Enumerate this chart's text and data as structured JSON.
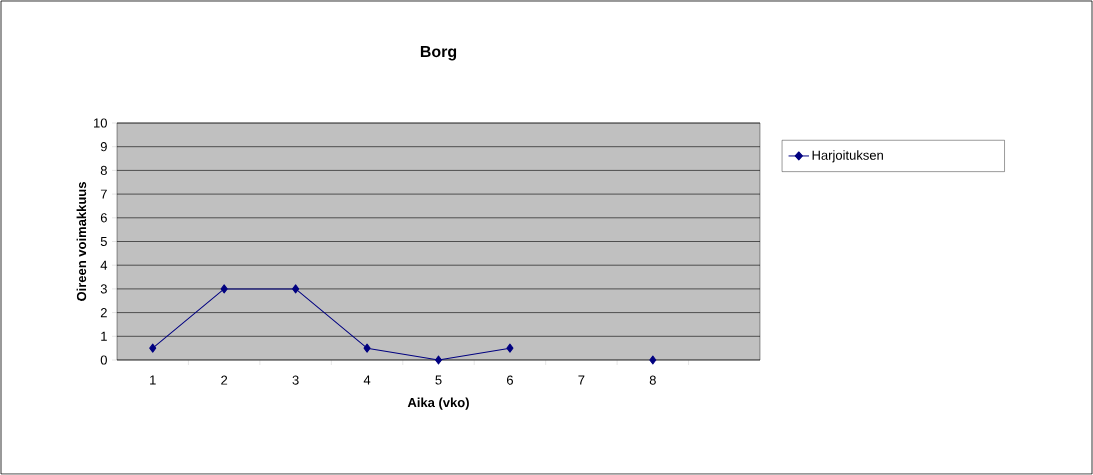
{
  "chart_data": {
    "type": "line",
    "title": "Borg",
    "xlabel": "Aika (vko)",
    "ylabel": "Oireen voimakkuus",
    "categories": [
      "1",
      "2",
      "3",
      "4",
      "5",
      "6",
      "7",
      "8",
      null
    ],
    "series": [
      {
        "name": "Harjoituksen",
        "color": "#000080",
        "values": [
          0.5,
          3,
          3,
          0.5,
          0,
          0.5,
          null,
          0,
          null
        ]
      }
    ],
    "ylim": [
      0,
      10
    ],
    "yticks": [
      0,
      1,
      2,
      3,
      4,
      5,
      6,
      7,
      8,
      9,
      10
    ],
    "grid": "y",
    "legend": "right",
    "marker": "diamond",
    "line_style": "solid"
  }
}
